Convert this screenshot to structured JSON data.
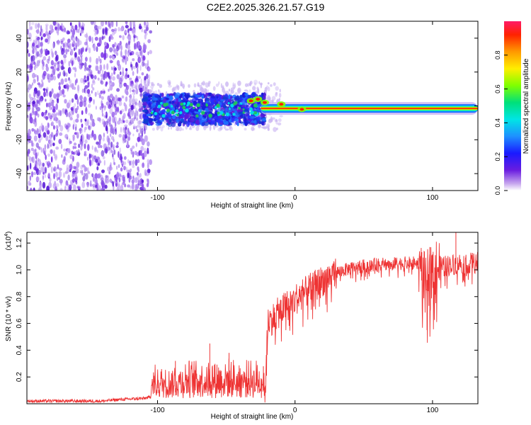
{
  "title": "C2E2.2025.326.21.57.G19",
  "chart_data": [
    {
      "type": "heatmap",
      "name": "spectrogram",
      "xlabel": "Height of straight line (km)",
      "ylabel": "Frequency (Hz)",
      "xlim": [
        -195,
        133
      ],
      "ylim": [
        -50,
        50
      ],
      "x_ticks": [
        -100,
        0,
        100
      ],
      "x_tick_labels": [
        "-100",
        "0",
        "100"
      ],
      "y_ticks": [
        -40,
        -20,
        0,
        20,
        40
      ],
      "y_tick_labels": [
        "-40",
        "-20",
        "0",
        "20",
        "40"
      ],
      "colorbar": {
        "label": "Normalized spectral amplitude",
        "range": [
          0,
          1
        ],
        "ticks": [
          0.0,
          0.2,
          0.4,
          0.6,
          0.8
        ],
        "tick_labels": [
          "0.0",
          "0.2",
          "0.4",
          "0.6",
          "0.8"
        ],
        "colormap": "rainbow"
      },
      "signal_band": {
        "center_frequency_hz": -1.5,
        "strong_from_km": -25,
        "noise_region_until_km": -105
      }
    },
    {
      "type": "line",
      "name": "snr",
      "xlabel": "Height of straight line (km)",
      "ylabel": "SNR (10 * v/v)",
      "multiplier_label": "(x10",
      "multiplier_exp": "4",
      "multiplier_close": ")",
      "xlim": [
        -195,
        133
      ],
      "ylim": [
        0,
        1.28
      ],
      "x_ticks": [
        -100,
        0,
        100
      ],
      "x_tick_labels": [
        "-100",
        "0",
        "100"
      ],
      "y_ticks": [
        0.2,
        0.4,
        0.6,
        0.8,
        1.0,
        1.2
      ],
      "y_tick_labels": [
        "0.2",
        "0.4",
        "0.6",
        "0.8",
        "1.0",
        "1.2"
      ],
      "color": "#ee3333",
      "trend_x": [
        -195,
        -140,
        -130,
        -110,
        -100,
        -90,
        -80,
        -60,
        -40,
        -22,
        -20,
        -10,
        0,
        10,
        20,
        30,
        40,
        50,
        60,
        80,
        90,
        95,
        100,
        110,
        120,
        133
      ],
      "trend_y": [
        0.02,
        0.02,
        0.03,
        0.04,
        0.06,
        0.08,
        0.1,
        0.12,
        0.1,
        0.1,
        0.6,
        0.7,
        0.78,
        0.85,
        0.92,
        0.98,
        1.01,
        1.03,
        1.04,
        1.05,
        1.05,
        0.9,
        1.02,
        1.03,
        1.05,
        1.05
      ],
      "spikes": [
        {
          "x": -87,
          "y": 0.32
        },
        {
          "x": -62,
          "y": 0.45
        },
        {
          "x": -48,
          "y": 0.38
        },
        {
          "x": -23,
          "y": 0.28
        },
        {
          "x": 98,
          "y": 1.17
        },
        {
          "x": 117,
          "y": 1.28
        },
        {
          "x": 96,
          "y": 0.55
        }
      ]
    }
  ]
}
